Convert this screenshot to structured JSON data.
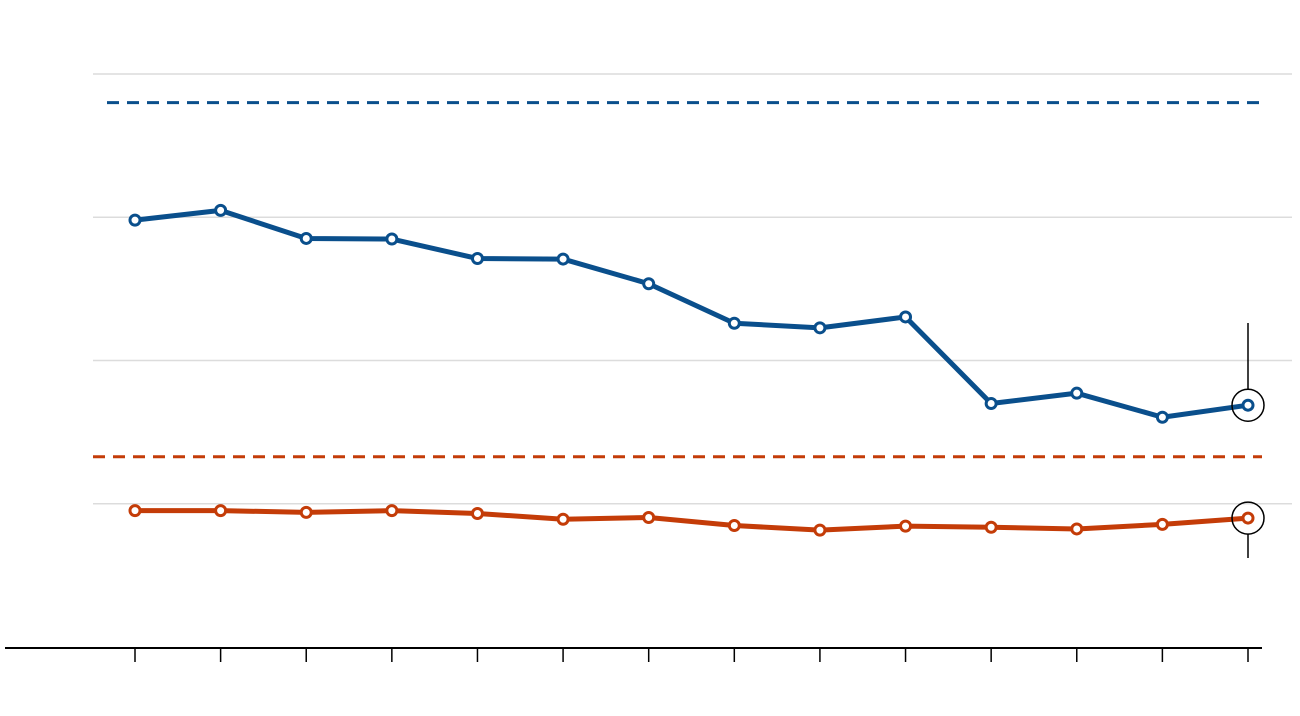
{
  "chart_data": {
    "type": "line",
    "title": "",
    "xlabel": "",
    "ylabel": "",
    "x": [
      1,
      2,
      3,
      4,
      5,
      6,
      7,
      8,
      9,
      10,
      11,
      12,
      13,
      14
    ],
    "ylim": [
      0,
      100
    ],
    "grid": true,
    "series": [
      {
        "color": "#0a4f8c",
        "values": [
          74.5,
          76.2,
          71.3,
          71.2,
          67.8,
          67.7,
          63.4,
          56.5,
          55.7,
          57.6,
          42.5,
          44.3,
          40.1,
          42.2
        ],
        "reference": 95.0
      },
      {
        "color": "#c43c08",
        "values": [
          23.8,
          23.8,
          23.5,
          23.8,
          23.3,
          22.3,
          22.6,
          21.2,
          20.4,
          21.1,
          20.9,
          20.6,
          21.4,
          22.5
        ],
        "reference": 33.2
      }
    ],
    "highlight_index": 13
  }
}
